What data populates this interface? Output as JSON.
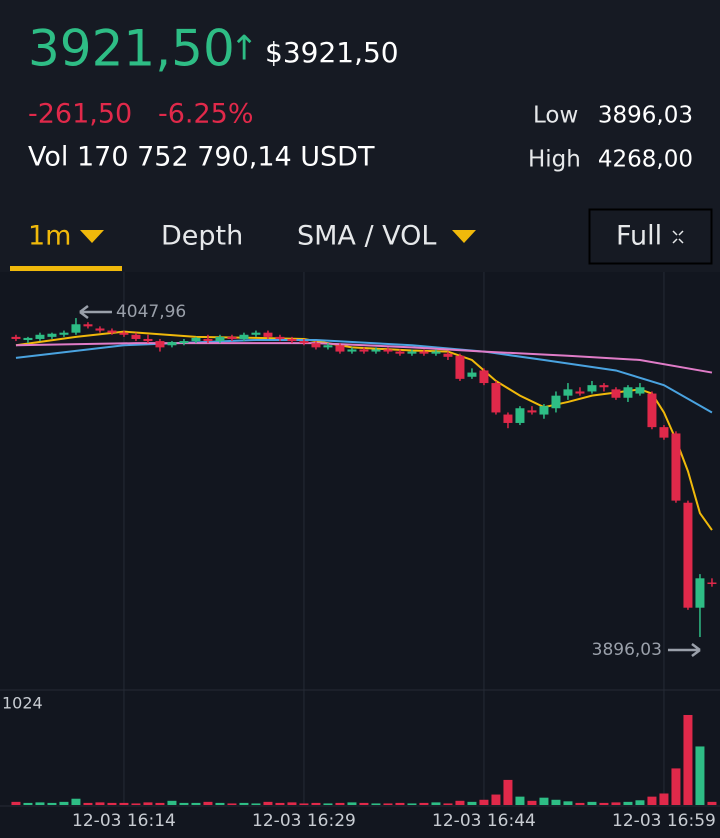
{
  "header": {
    "price": "3921,50",
    "price_usd": "$3921,50",
    "change": "-261,50",
    "change_pct": "-6.25%",
    "volume": "Vol 170 752 790,14 USDT",
    "low_label": "Low",
    "low": "3896,03",
    "high_label": "High",
    "high": "4268,00"
  },
  "tabs": [
    "1m",
    "Depth",
    "SMA / VOL",
    "Full"
  ],
  "chart_data": {
    "type": "candlestick",
    "x": [
      0,
      1,
      2,
      3,
      4,
      5,
      6,
      7,
      8,
      9,
      10,
      11,
      12,
      13,
      14,
      15,
      16,
      17,
      18,
      19,
      20,
      21,
      22,
      23,
      24,
      25,
      26,
      27,
      28,
      29,
      30,
      31,
      32,
      33,
      34,
      35,
      36,
      37,
      38,
      39,
      40,
      41,
      42,
      43,
      44,
      45,
      46,
      47,
      48,
      49,
      50,
      51,
      52,
      53,
      54,
      55,
      56,
      57,
      58
    ],
    "open": [
      4039,
      4037.5,
      4038,
      4039,
      4040,
      4041,
      4045,
      4043,
      4042,
      4041,
      4040,
      4038,
      4037,
      4035,
      4036,
      4037,
      4038,
      4037,
      4039,
      4038,
      4040,
      4041,
      4039,
      4038,
      4037,
      4036,
      4034,
      4035,
      4032,
      4033,
      4032,
      4033,
      4032,
      4031,
      4032,
      4031,
      4031,
      4030,
      4020,
      4023,
      4017,
      4002,
      3998,
      4004,
      4002,
      4005,
      4011,
      4013,
      4013,
      4016,
      4014,
      4010,
      4012,
      4012,
      3996,
      3993,
      3960,
      3910,
      3922
    ],
    "high": [
      4040,
      4039,
      4041,
      4041,
      4042,
      4047.96,
      4046,
      4044,
      4043,
      4042,
      4041,
      4040,
      4038,
      4037,
      4038,
      4039,
      4040,
      4040,
      4040,
      4041,
      4042,
      4042,
      4040,
      4039,
      4038,
      4037,
      4036,
      4036,
      4034,
      4034,
      4034,
      4034,
      4033,
      4033,
      4033,
      4033,
      4032,
      4031,
      4024,
      4024,
      4018,
      4003,
      4006,
      4006,
      4007,
      4013,
      4017,
      4015,
      4018,
      4017,
      4015,
      4016,
      4017,
      4013,
      3997,
      3994,
      3961,
      3926,
      3924
    ],
    "low": [
      4037,
      4036,
      4037,
      4038,
      4039,
      4040,
      4043,
      4041,
      4040,
      4039,
      4037,
      4036,
      4032,
      4034,
      4035,
      4036,
      4036,
      4036,
      4037,
      4037,
      4039,
      4038,
      4037,
      4036,
      4035,
      4033,
      4033,
      4031,
      4031,
      4031,
      4031,
      4031,
      4030,
      4030,
      4030,
      4030,
      4028,
      4018,
      4019,
      4016,
      4002,
      3995.5,
      3997,
      4002,
      4000,
      4003,
      4009,
      4011,
      4012,
      4013,
      4009,
      4008,
      4011,
      3995,
      3990,
      3960,
      3909,
      3896.03,
      3920
    ],
    "close": [
      4038,
      4038.5,
      4040,
      4040.5,
      4041,
      4045,
      4044,
      4042,
      4041,
      4040,
      4038,
      4037,
      4034,
      4036.5,
      4037,
      4038.5,
      4037,
      4039,
      4038,
      4040,
      4041,
      4039,
      4038,
      4037,
      4036,
      4034,
      4035,
      4032,
      4033,
      4032,
      4033,
      4032,
      4031,
      4032,
      4031,
      4032,
      4029.5,
      4019,
      4022,
      4017,
      4003,
      3998,
      4005,
      4003,
      4006,
      4011,
      4014,
      4012,
      4016,
      4015,
      4010,
      4015,
      4015,
      3996,
      3991,
      3961,
      3910,
      3924,
      3921.5
    ],
    "up_color": "#2ebd85",
    "down_color": "#e0294a",
    "xlim": [
      -1.33,
      58.67
    ],
    "ylim": [
      3870.8,
      4069.9
    ],
    "xticks": [
      {
        "value": 9,
        "label": "12-03 16:14"
      },
      {
        "value": 24,
        "label": "12-03 16:29"
      },
      {
        "value": 39,
        "label": "12-03 16:44"
      },
      {
        "value": 54,
        "label": "12-03 16:59"
      }
    ],
    "grid": true,
    "max_marker": {
      "value": 4047.96,
      "label": "4047,96"
    },
    "min_marker": {
      "value": 3896.03,
      "label": "3896,03"
    },
    "moving_averages": [
      {
        "color": "#f0b90b",
        "x": [
          0,
          5,
          9,
          15,
          20,
          24,
          28,
          33,
          36,
          38,
          40,
          42,
          44,
          46,
          48,
          50,
          52,
          53,
          54,
          55,
          56,
          57,
          58
        ],
        "values": [
          4035,
          4039,
          4041.5,
          4039,
          4038.5,
          4038,
          4034,
          4032.5,
          4032,
          4028,
          4018,
          4011,
          4005.5,
          4008,
          4011,
          4012.5,
          4014,
          4012,
          4003,
          3990,
          3975,
          3955,
          3947
        ]
      },
      {
        "color": "#4aa3e0",
        "x": [
          0,
          9,
          20,
          25,
          33,
          39,
          44,
          50,
          54,
          58
        ],
        "values": [
          4029,
          4035,
          4037.5,
          4037.5,
          4035,
          4032,
          4028,
          4023,
          4016,
          4003
        ]
      },
      {
        "color": "#e07cc8",
        "x": [
          0,
          10,
          25,
          33,
          39,
          46,
          52,
          58
        ],
        "values": [
          4035,
          4036,
          4036,
          4034,
          4032,
          4030,
          4028,
          4022
        ]
      }
    ],
    "volume": {
      "values": [
        30,
        20,
        25,
        20,
        30,
        60,
        20,
        25,
        20,
        20,
        15,
        25,
        20,
        40,
        20,
        20,
        30,
        20,
        15,
        20,
        15,
        30,
        20,
        25,
        15,
        20,
        15,
        20,
        25,
        20,
        15,
        15,
        20,
        15,
        20,
        25,
        15,
        40,
        30,
        50,
        100,
        240,
        80,
        40,
        70,
        50,
        35,
        20,
        30,
        20,
        25,
        30,
        45,
        80,
        110,
        350,
        861,
        560,
        30
      ],
      "ylim": [
        0,
        1100
      ],
      "yticks": [
        1024
      ]
    }
  }
}
